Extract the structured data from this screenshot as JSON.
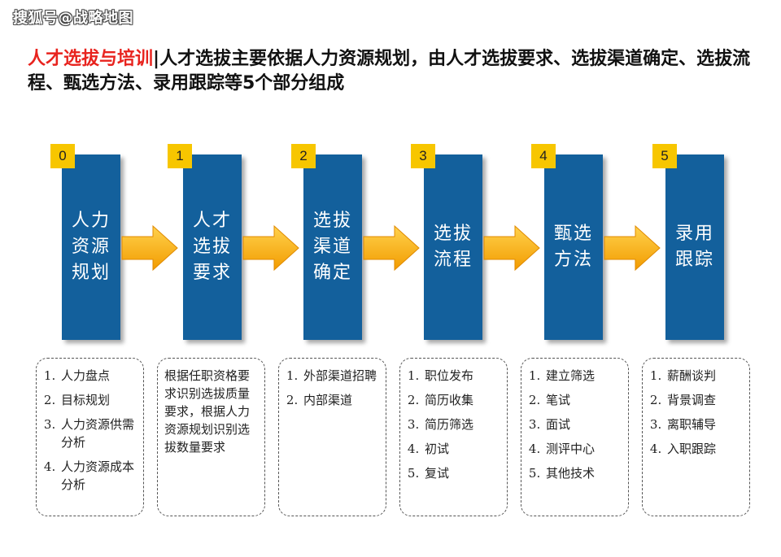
{
  "watermark": "搜狐号@战略地图",
  "title": {
    "highlight": "人才选拔与培训",
    "separator": "|",
    "rest": "人才选拔主要依据人力资源规划，由人才选拔要求、选拔渠道确定、选拔流程、甄选方法、录用跟踪等5个部分组成"
  },
  "stages": [
    {
      "num": "0",
      "label": "人力\n资源\n规划",
      "items": [
        "人力盘点",
        "目标规划",
        "人力资源供需分析",
        "人力资源成本分析"
      ]
    },
    {
      "num": "1",
      "label": "人才\n选拔\n要求",
      "paragraph": "根据任职资格要求识别选拔质量要求，根据人力资源规划识别选拔数量要求"
    },
    {
      "num": "2",
      "label": "选拔\n渠道\n确定",
      "items": [
        "外部渠道招聘",
        "内部渠道"
      ]
    },
    {
      "num": "3",
      "label": "选拔\n流程",
      "items": [
        "职位发布",
        "简历收集",
        "简历筛选",
        "初试",
        "复试"
      ]
    },
    {
      "num": "4",
      "label": "甄选\n方法",
      "items": [
        "建立筛选",
        "笔试",
        "面试",
        "测评中心",
        "其他技术"
      ]
    },
    {
      "num": "5",
      "label": "录用\n跟踪",
      "items": [
        "薪酬谈判",
        "背景调查",
        "离职辅导",
        "入职跟踪"
      ]
    }
  ],
  "colors": {
    "bar": "#13609c",
    "badge": "#f7c600",
    "arrow": "#f5a300",
    "highlight": "#e8231e"
  }
}
